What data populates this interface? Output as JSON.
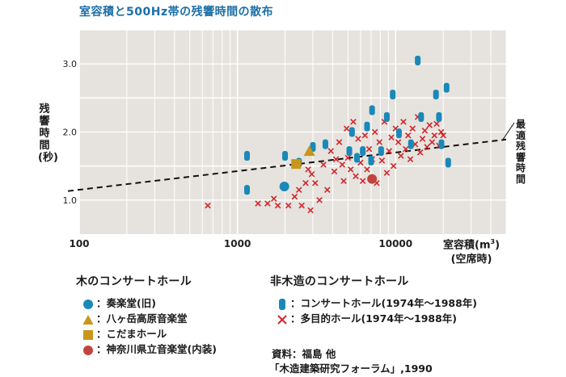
{
  "chart_data": {
    "type": "scatter",
    "title": "室容積と500Hz帯の残響時間の散布",
    "xlabel": "室容積(m³)",
    "xlabel_note": "(空席時)",
    "ylabel": "残響時間(秒)",
    "x_scale": "log",
    "xlim": [
      100,
      50000
    ],
    "ylim": [
      0.5,
      3.5
    ],
    "x_ticks": [
      "100",
      "1000",
      "10000"
    ],
    "y_ticks": [
      "1.0",
      "2.0",
      "3.0"
    ],
    "grid": true,
    "optimum_line": {
      "label": "最適残響時間",
      "x": [
        100,
        50000
      ],
      "y": [
        1.15,
        1.89
      ]
    },
    "wood_legend_title": "木のコンサートホール",
    "nonwood_legend_title": "非木造のコンサートホール",
    "wood_series": [
      {
        "name": "奏楽堂(旧)",
        "marker": "circle",
        "color": "#1a88b8",
        "points": [
          [
            1980,
            1.2
          ]
        ]
      },
      {
        "name": "八ヶ岳高原音楽堂",
        "marker": "triangle",
        "color": "#c9961a",
        "points": [
          [
            2850,
            1.72
          ]
        ]
      },
      {
        "name": "こだまホール",
        "marker": "square",
        "color": "#c9961a",
        "points": [
          [
            2350,
            1.53
          ]
        ]
      },
      {
        "name": "神奈川県立音楽堂(内装)",
        "marker": "circle",
        "color": "#c0443e",
        "points": [
          [
            7100,
            1.31
          ]
        ]
      }
    ],
    "nonwood_series": [
      {
        "name": "コンサートホール(1974年～1988年)",
        "marker": "capsule",
        "color": "#1a88b8",
        "points": [
          [
            1150,
            1.65
          ],
          [
            1150,
            1.15
          ],
          [
            2000,
            1.65
          ],
          [
            2450,
            1.55
          ],
          [
            3000,
            1.78
          ],
          [
            3600,
            1.82
          ],
          [
            5100,
            1.72
          ],
          [
            5300,
            2.0
          ],
          [
            5700,
            1.62
          ],
          [
            6200,
            1.72
          ],
          [
            6600,
            2.08
          ],
          [
            7000,
            1.58
          ],
          [
            7100,
            2.32
          ],
          [
            8100,
            1.72
          ],
          [
            8800,
            2.22
          ],
          [
            9600,
            2.55
          ],
          [
            10500,
            1.98
          ],
          [
            12500,
            1.82
          ],
          [
            13800,
            3.05
          ],
          [
            14500,
            2.22
          ],
          [
            18000,
            2.55
          ],
          [
            18800,
            2.22
          ],
          [
            19500,
            1.82
          ],
          [
            21000,
            2.65
          ],
          [
            21500,
            1.55
          ]
        ]
      },
      {
        "name": "多目的ホール(1974年～1988年)",
        "marker": "x",
        "color": "#d0262c",
        "points": [
          [
            650,
            0.92
          ],
          [
            1350,
            0.95
          ],
          [
            1550,
            0.95
          ],
          [
            1700,
            1.02
          ],
          [
            1800,
            0.92
          ],
          [
            2100,
            0.92
          ],
          [
            2300,
            1.05
          ],
          [
            2450,
            1.15
          ],
          [
            2550,
            0.92
          ],
          [
            2700,
            1.25
          ],
          [
            2800,
            1.45
          ],
          [
            2900,
            0.85
          ],
          [
            2950,
            1.38
          ],
          [
            3100,
            1.25
          ],
          [
            3300,
            1.0
          ],
          [
            3500,
            1.52
          ],
          [
            3700,
            1.15
          ],
          [
            3900,
            1.72
          ],
          [
            4100,
            1.42
          ],
          [
            4200,
            1.6
          ],
          [
            4400,
            1.85
          ],
          [
            4600,
            1.52
          ],
          [
            4700,
            1.28
          ],
          [
            4900,
            2.05
          ],
          [
            5000,
            1.62
          ],
          [
            5200,
            1.45
          ],
          [
            5400,
            2.15
          ],
          [
            5600,
            1.35
          ],
          [
            5800,
            1.9
          ],
          [
            6000,
            1.55
          ],
          [
            6200,
            1.28
          ],
          [
            6400,
            1.95
          ],
          [
            6600,
            1.45
          ],
          [
            6800,
            1.75
          ],
          [
            7100,
            1.6
          ],
          [
            7400,
            2.0
          ],
          [
            7600,
            1.25
          ],
          [
            7900,
            1.85
          ],
          [
            8200,
            1.58
          ],
          [
            8500,
            2.15
          ],
          [
            8800,
            1.4
          ],
          [
            9100,
            1.72
          ],
          [
            9400,
            1.92
          ],
          [
            9700,
            1.5
          ],
          [
            10000,
            2.05
          ],
          [
            10400,
            1.85
          ],
          [
            10800,
            1.65
          ],
          [
            11200,
            2.15
          ],
          [
            11600,
            1.75
          ],
          [
            12000,
            1.95
          ],
          [
            12400,
            1.6
          ],
          [
            12800,
            2.05
          ],
          [
            13300,
            1.82
          ],
          [
            13800,
            2.22
          ],
          [
            14300,
            1.7
          ],
          [
            14800,
            1.9
          ],
          [
            15300,
            2.02
          ],
          [
            15800,
            1.78
          ],
          [
            16400,
            2.1
          ],
          [
            17000,
            1.85
          ],
          [
            17600,
            1.95
          ],
          [
            18200,
            2.12
          ],
          [
            18800,
            1.8
          ],
          [
            19400,
            2.0
          ],
          [
            20000,
            1.95
          ]
        ]
      }
    ]
  },
  "source": {
    "line1": "資料：福島 他",
    "line2": "「木造建築研究フォーラム」,1990"
  }
}
